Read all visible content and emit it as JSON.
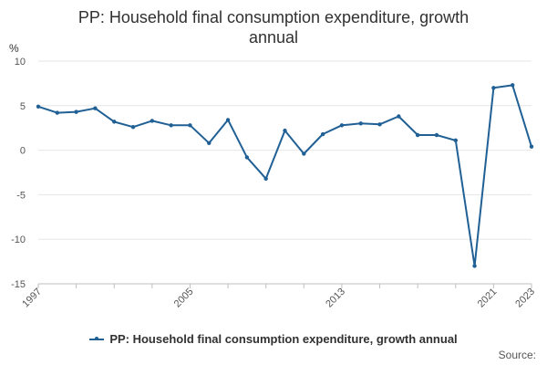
{
  "chart_data": {
    "type": "line",
    "title": "PP: Household final consumption expenditure, growth annual",
    "title_lines": [
      "PP: Household final consumption expenditure, growth",
      "annual"
    ],
    "ylabel": "%",
    "xlabel": "",
    "ylim": [
      -15,
      10
    ],
    "yticks": [
      "10",
      "5",
      "0",
      "-5",
      "-10",
      "-15"
    ],
    "ytick_values": [
      10,
      5,
      0,
      -5,
      -10,
      -15
    ],
    "xlim": [
      1997,
      2023
    ],
    "xtick_labels": [
      "1997",
      "2005",
      "2013",
      "2021",
      "2023"
    ],
    "xtick_values": [
      1997,
      2005,
      2013,
      2021,
      2023
    ],
    "grid": true,
    "legend_position": "bottom",
    "series": [
      {
        "name": "PP: Household final consumption expenditure, growth annual",
        "color": "#206095",
        "x": [
          1997,
          1998,
          1999,
          2000,
          2001,
          2002,
          2003,
          2004,
          2005,
          2006,
          2007,
          2008,
          2009,
          2010,
          2011,
          2012,
          2013,
          2014,
          2015,
          2016,
          2017,
          2018,
          2019,
          2020,
          2021,
          2022,
          2023
        ],
        "values": [
          4.9,
          4.2,
          4.3,
          4.7,
          3.2,
          2.6,
          3.3,
          2.8,
          2.8,
          0.8,
          3.4,
          -0.8,
          -3.2,
          2.2,
          -0.4,
          1.8,
          2.8,
          3.0,
          2.9,
          3.8,
          1.7,
          1.7,
          1.1,
          -13.0,
          7.0,
          7.3,
          0.4
        ]
      }
    ]
  },
  "legend": {
    "label": "PP: Household final consumption expenditure, growth annual"
  },
  "footer": {
    "source_label": "Source:"
  }
}
